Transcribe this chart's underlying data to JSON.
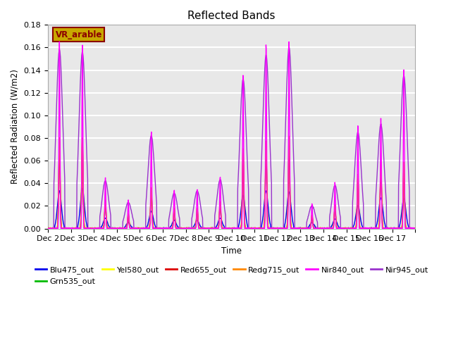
{
  "title": "Reflected Bands",
  "xlabel": "Time",
  "ylabel": "Reflected Radiation (W/m2)",
  "annotation": "VR_arable",
  "annotation_color": "#8B0000",
  "annotation_bg": "#C8A800",
  "ylim": [
    0,
    0.18
  ],
  "series_order": [
    "Blu475_out",
    "Grn535_out",
    "Yel580_out",
    "Red655_out",
    "Redg715_out",
    "Nir840_out",
    "Nir945_out"
  ],
  "series": {
    "Blu475_out": {
      "color": "#0000EE",
      "lw": 1.0
    },
    "Grn535_out": {
      "color": "#00BB00",
      "lw": 1.0
    },
    "Yel580_out": {
      "color": "#FFFF00",
      "lw": 1.0
    },
    "Red655_out": {
      "color": "#DD0000",
      "lw": 1.0
    },
    "Redg715_out": {
      "color": "#FF8800",
      "lw": 1.0
    },
    "Nir840_out": {
      "color": "#FF00FF",
      "lw": 1.0
    },
    "Nir945_out": {
      "color": "#9933CC",
      "lw": 1.0
    }
  },
  "legend_order": [
    "Blu475_out",
    "Grn535_out",
    "Yel580_out",
    "Red655_out",
    "Redg715_out",
    "Nir840_out",
    "Nir945_out"
  ],
  "tick_labels": [
    "Dec 2",
    "Dec 3",
    "Dec 4",
    "Dec 5",
    "Dec 6",
    "Dec 7",
    "Dec 8",
    "Dec 9",
    "Dec 10",
    "Dec 11",
    "Dec 12",
    "Dec 13",
    "Dec 14",
    "Dec 15",
    "Dec 16",
    "Dec 17"
  ],
  "background_color": "#E8E8E8",
  "grid_color": "#FFFFFF",
  "nir840_peaks": [
    0.165,
    0.162,
    0.045,
    0.025,
    0.086,
    0.034,
    0.035,
    0.046,
    0.139,
    0.165,
    0.167,
    0.022,
    0.041,
    0.091,
    0.097,
    0.14
  ],
  "nir945_peaks": [
    0.158,
    0.156,
    0.042,
    0.023,
    0.082,
    0.031,
    0.033,
    0.043,
    0.132,
    0.153,
    0.16,
    0.02,
    0.038,
    0.085,
    0.092,
    0.135
  ],
  "blu_peaks": [
    0.033,
    0.035,
    0.009,
    0.005,
    0.015,
    0.007,
    0.007,
    0.009,
    0.029,
    0.033,
    0.032,
    0.005,
    0.008,
    0.02,
    0.027,
    0.026
  ],
  "grn_peaks": [
    0.07,
    0.072,
    0.02,
    0.011,
    0.031,
    0.015,
    0.015,
    0.02,
    0.061,
    0.069,
    0.07,
    0.01,
    0.018,
    0.042,
    0.051,
    0.05
  ],
  "yel_peaks": [
    0.075,
    0.077,
    0.022,
    0.012,
    0.033,
    0.016,
    0.016,
    0.022,
    0.066,
    0.073,
    0.075,
    0.011,
    0.019,
    0.045,
    0.054,
    0.053
  ],
  "red_peaks": [
    0.077,
    0.078,
    0.023,
    0.012,
    0.034,
    0.017,
    0.017,
    0.023,
    0.068,
    0.075,
    0.076,
    0.011,
    0.02,
    0.046,
    0.056,
    0.055
  ],
  "redg_peaks": [
    0.08,
    0.08,
    0.025,
    0.013,
    0.036,
    0.018,
    0.018,
    0.024,
    0.071,
    0.078,
    0.082,
    0.012,
    0.021,
    0.048,
    0.059,
    0.058
  ]
}
